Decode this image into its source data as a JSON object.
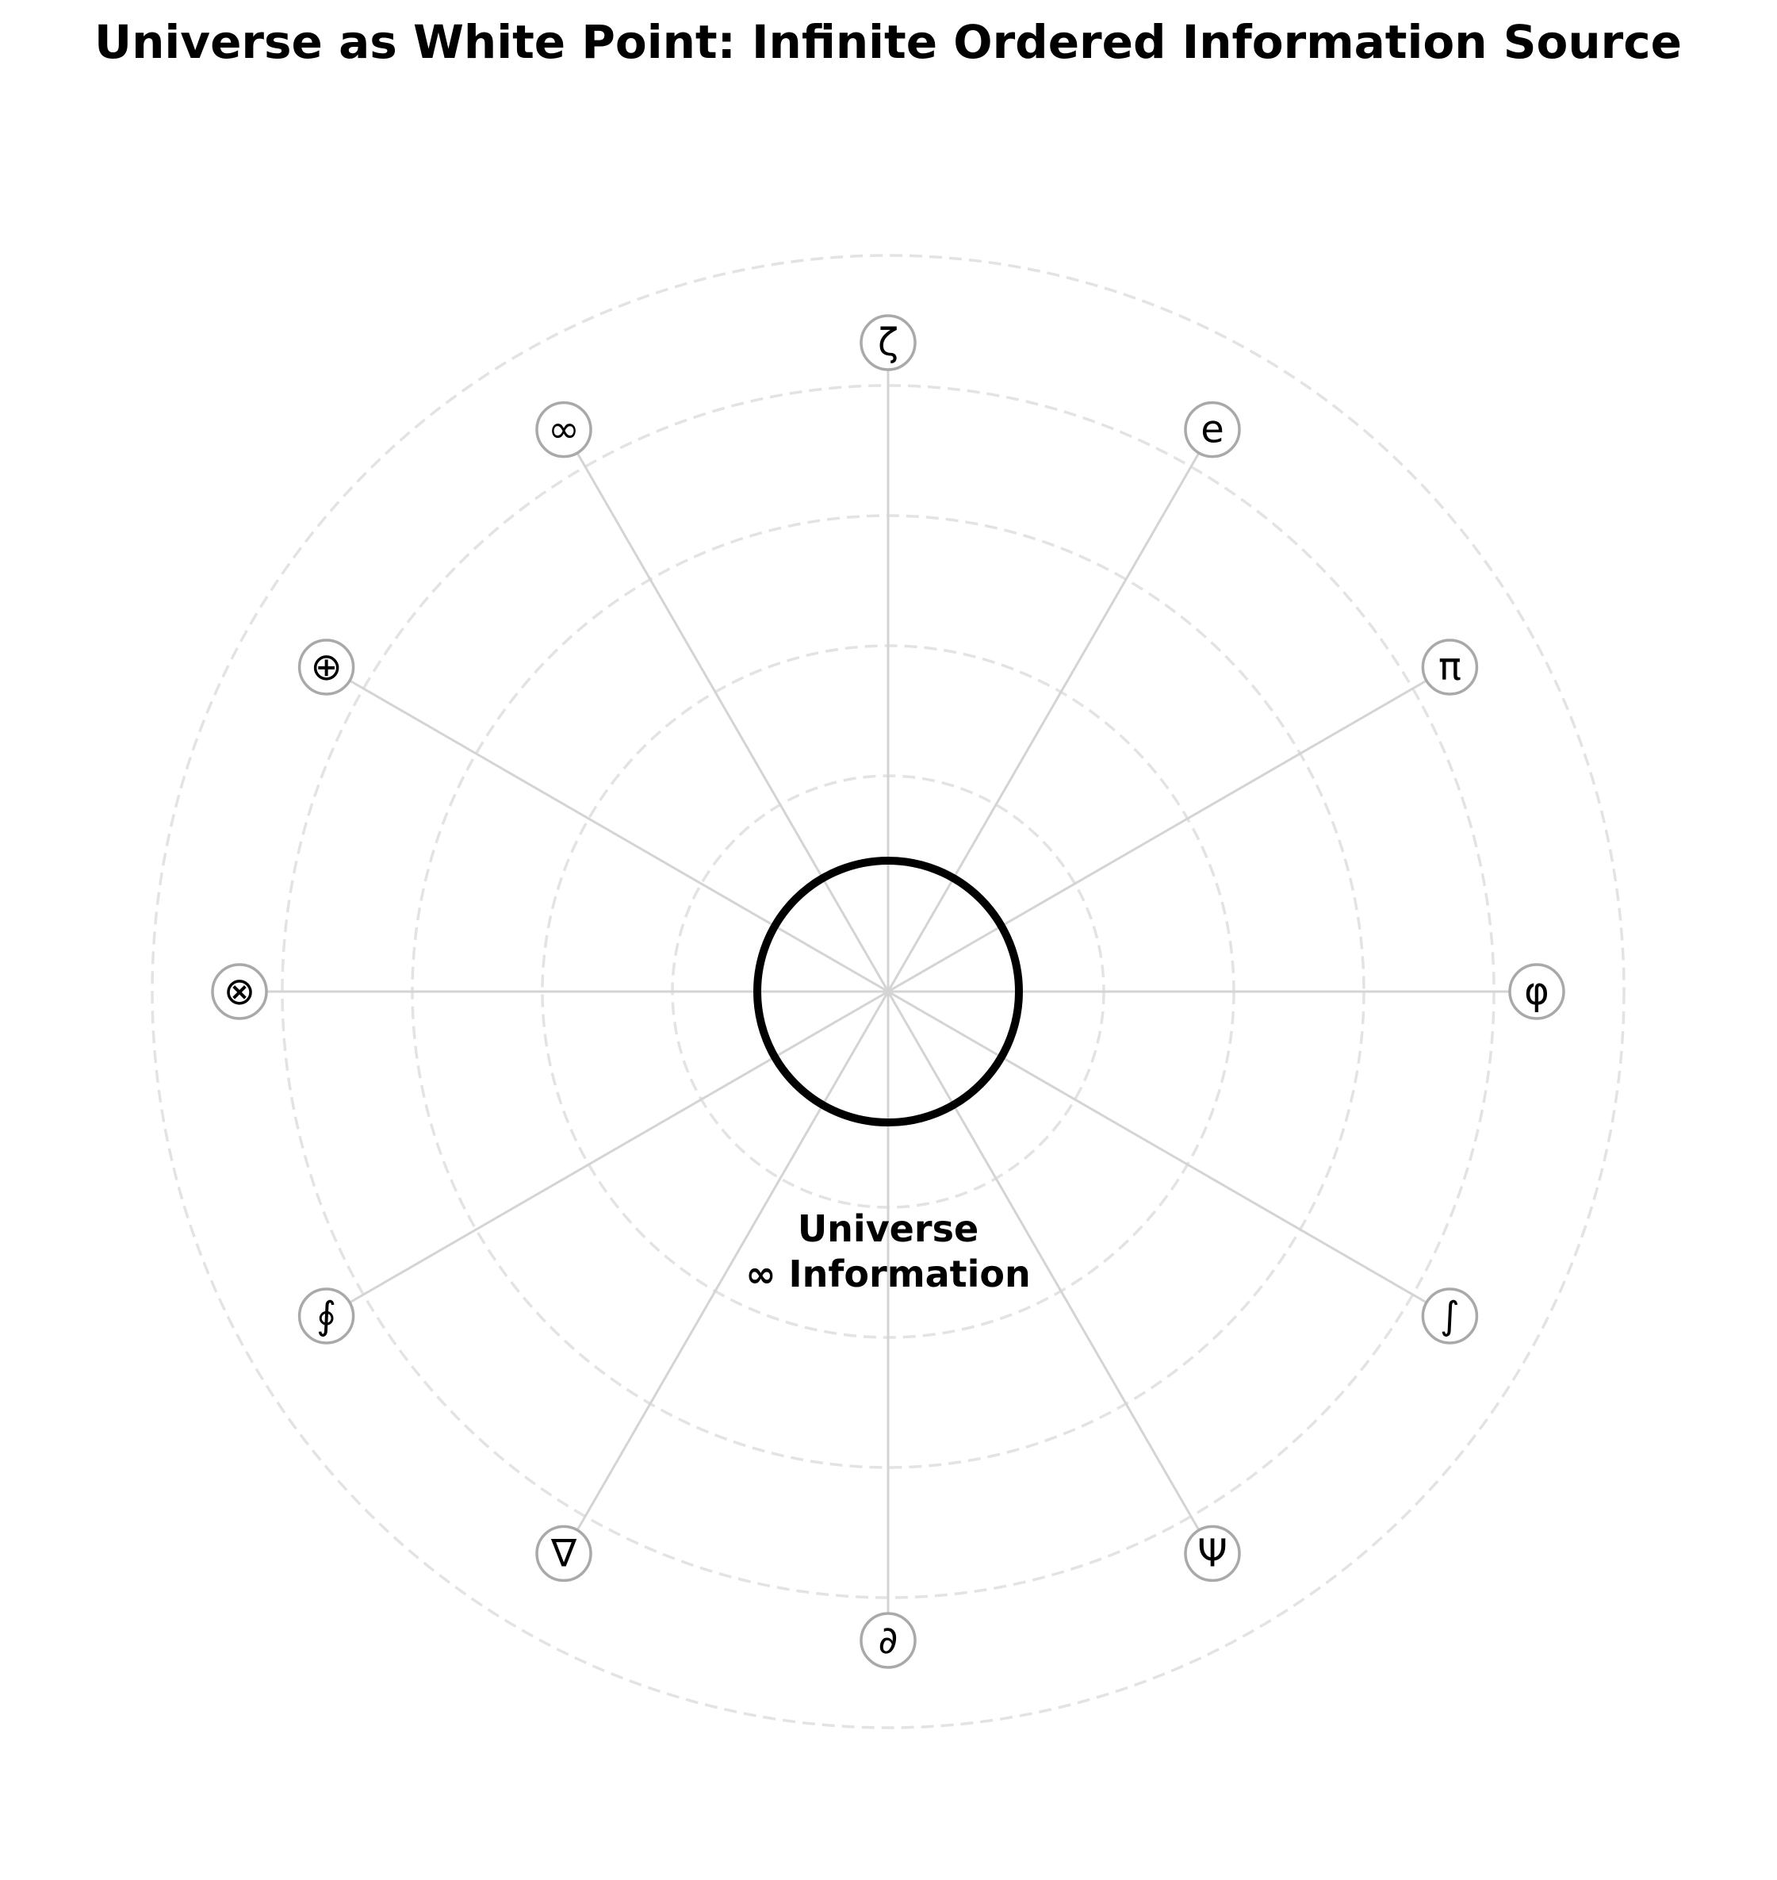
{
  "title": "Universe as White Point: Infinite Ordered Information Source",
  "center": {
    "line1": "Universe",
    "line2": "∞ Information"
  },
  "symbols": [
    "φ",
    "π",
    "e",
    "ζ",
    "∞",
    "⊕",
    "⊗",
    "∮",
    "∇",
    "∂",
    "Ψ",
    "∫"
  ],
  "colors": {
    "core_stroke": "#000000",
    "spoke": "#d4d4d4",
    "ring": "#e3e3e3",
    "node_stroke": "#a9a9a9",
    "background": "#ffffff"
  }
}
